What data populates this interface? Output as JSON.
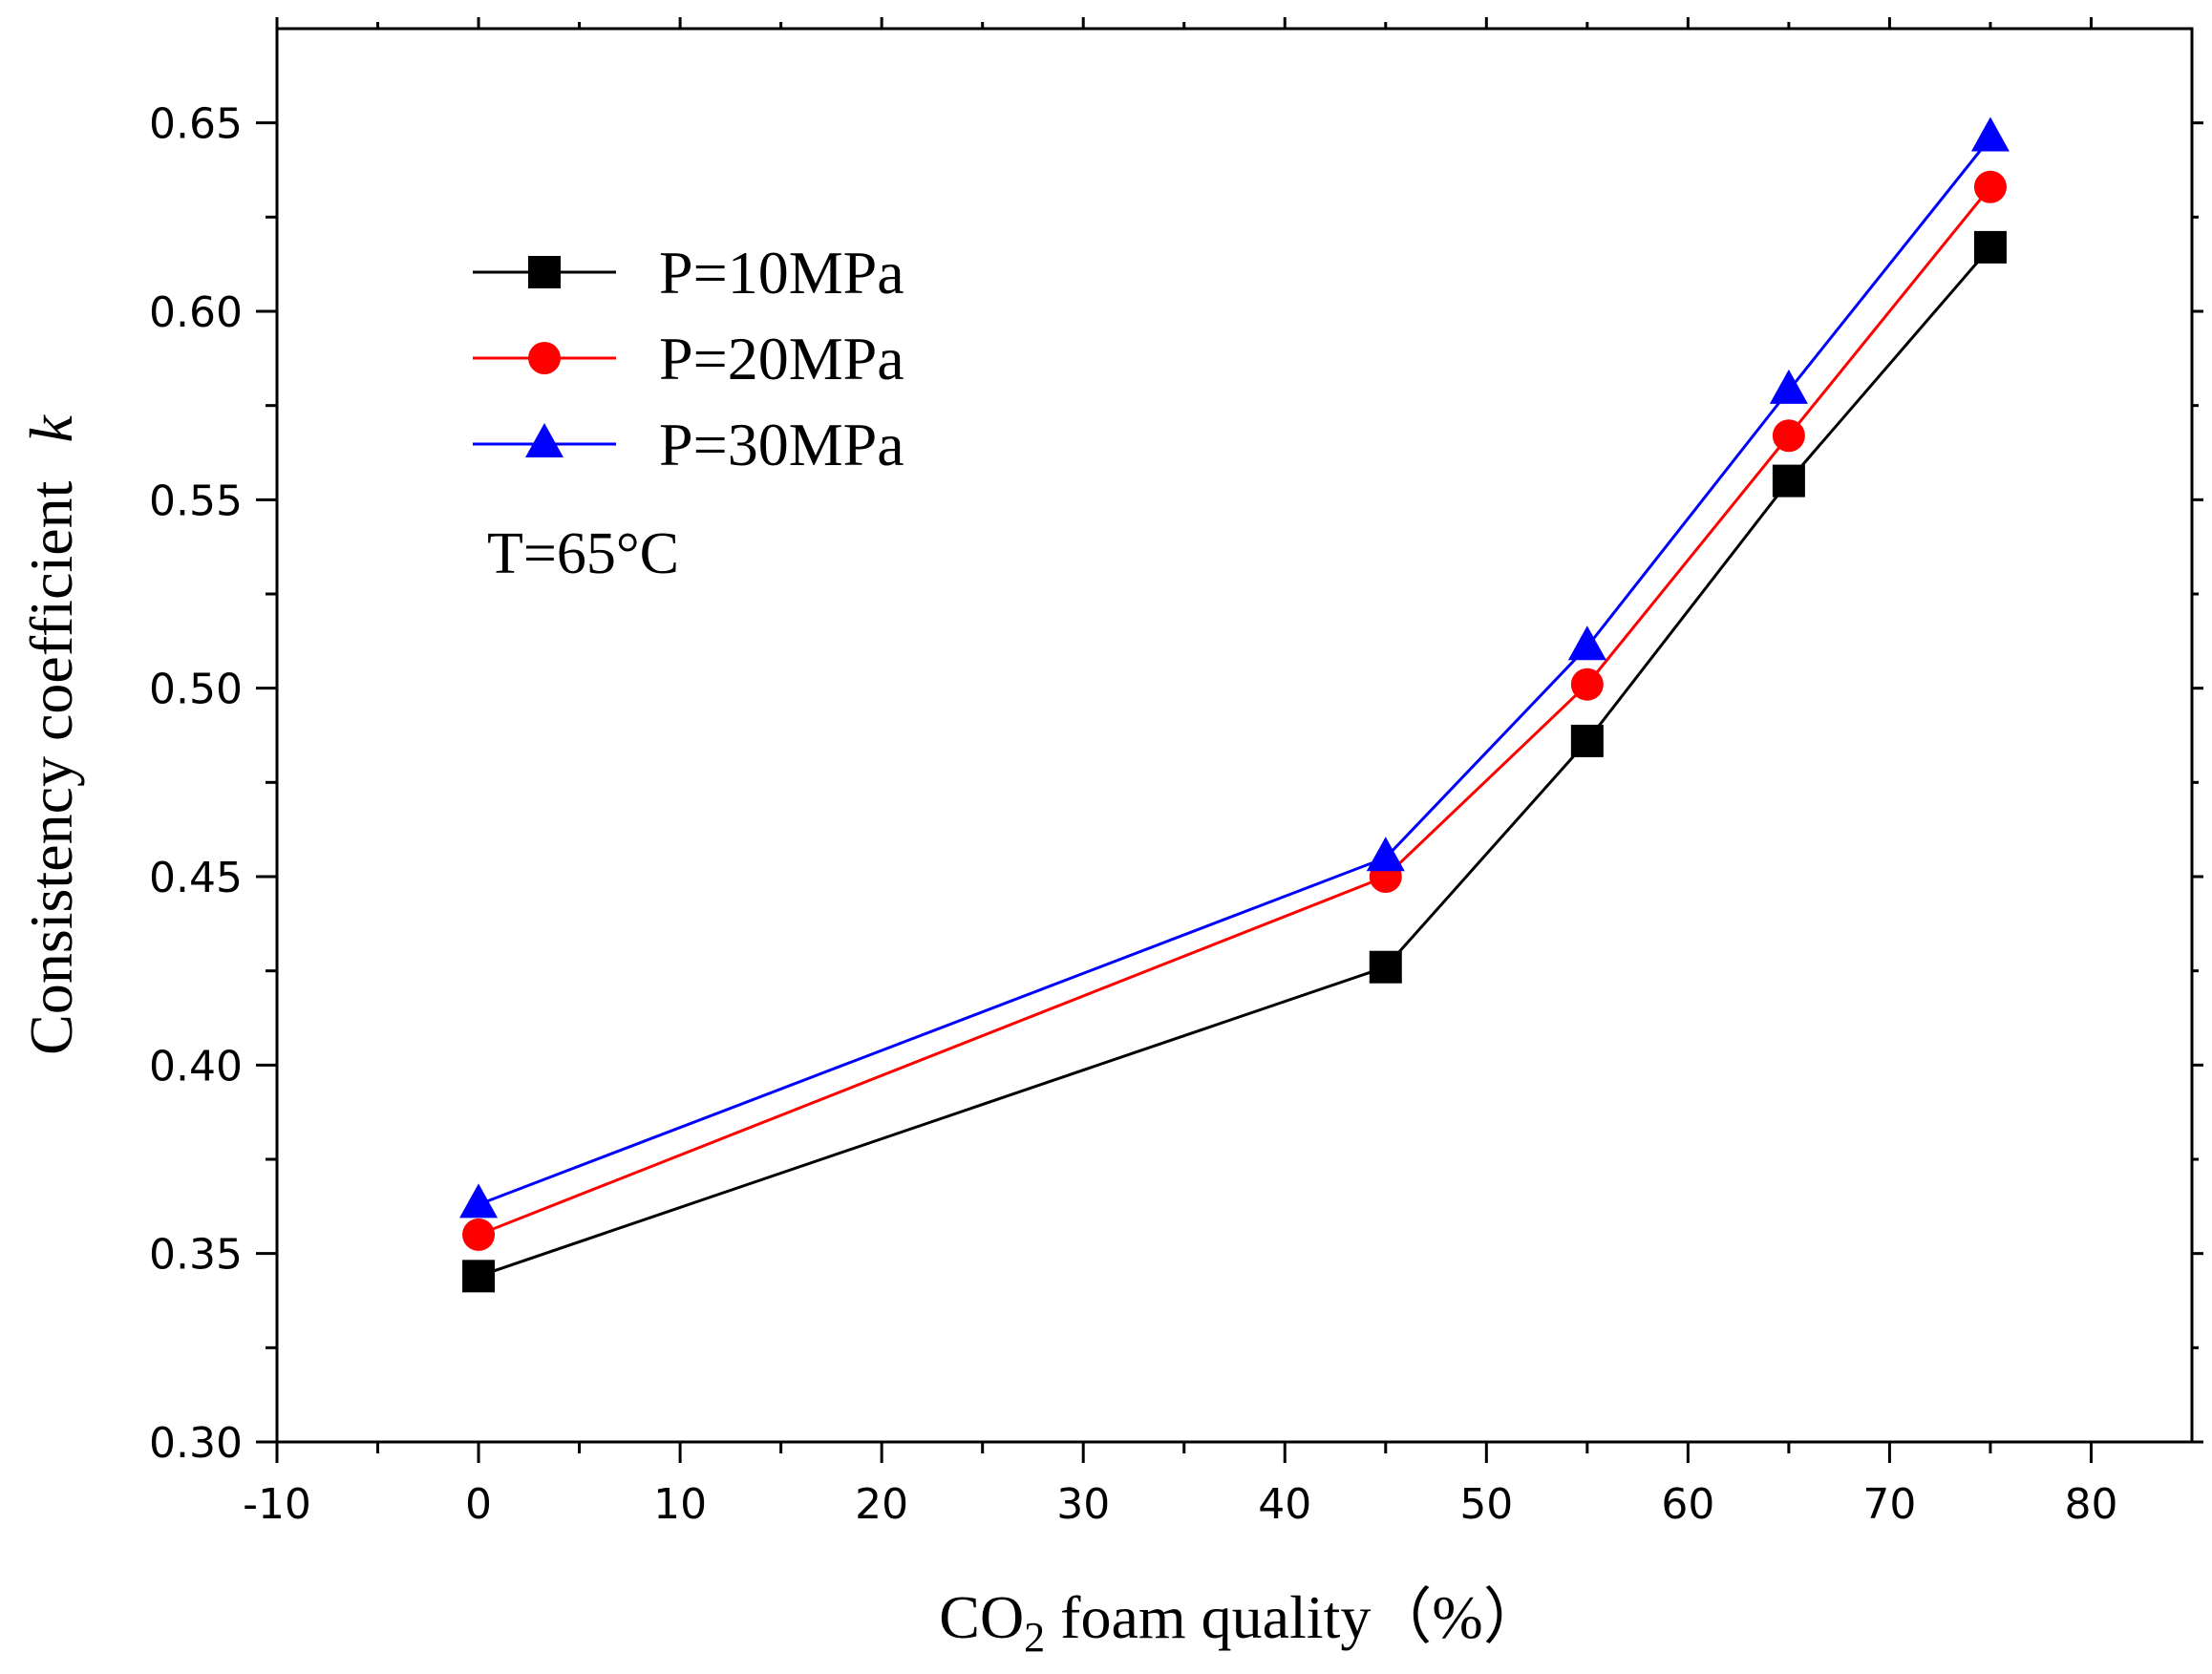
{
  "chart_data": {
    "type": "line",
    "title": "",
    "xlabel": {
      "prefix": "CO",
      "sub": "2",
      "suffix": " foam quality（%）"
    },
    "ylabel": {
      "text": "Consistency coefficient",
      "italic": "k"
    },
    "xlim": [
      -10,
      85
    ],
    "ylim": [
      0.3,
      0.675
    ],
    "x_ticks": [
      -10,
      0,
      10,
      20,
      30,
      40,
      50,
      60,
      70,
      80
    ],
    "x_tick_labels": [
      "-10",
      "0",
      "10",
      "20",
      "30",
      "40",
      "50",
      "60",
      "70",
      "80"
    ],
    "y_ticks": [
      0.3,
      0.35,
      0.4,
      0.45,
      0.5,
      0.55,
      0.6,
      0.65
    ],
    "y_tick_labels": [
      "0.30",
      "0.35",
      "0.40",
      "0.45",
      "0.50",
      "0.55",
      "0.60",
      "0.65"
    ],
    "x": [
      0,
      45,
      55,
      65,
      75
    ],
    "series": [
      {
        "name": "P=10MPa",
        "color": "#000000",
        "marker": "square",
        "values": [
          0.344,
          0.426,
          0.486,
          0.555,
          0.617
        ]
      },
      {
        "name": "P=20MPa",
        "color": "#ff0000",
        "marker": "circle",
        "values": [
          0.355,
          0.45,
          0.501,
          0.567,
          0.633
        ]
      },
      {
        "name": "P=30MPa",
        "color": "#0000ff",
        "marker": "triangle",
        "values": [
          0.363,
          0.455,
          0.511,
          0.579,
          0.646
        ]
      }
    ],
    "annotation": "T=65°C",
    "legend_position": "top-left",
    "grid": false
  }
}
